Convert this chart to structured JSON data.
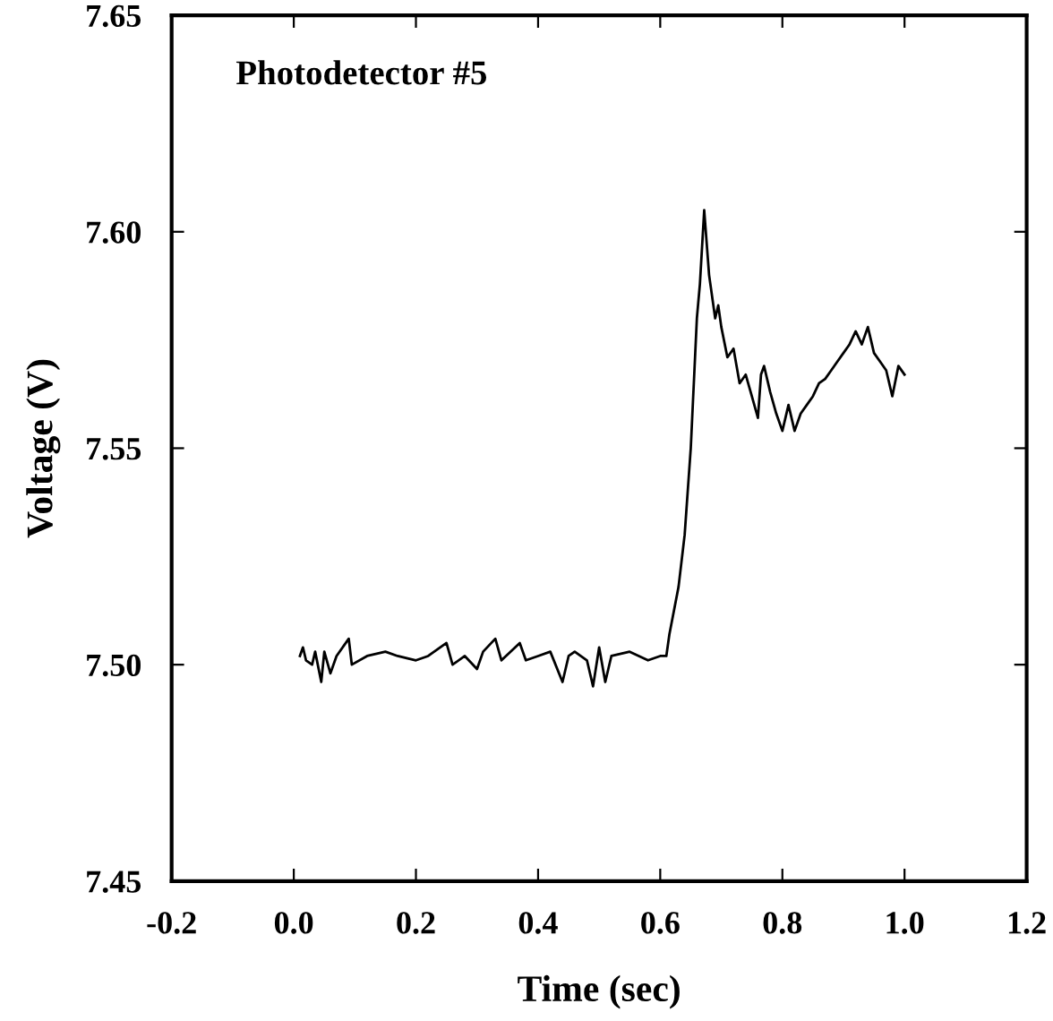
{
  "chart_data": {
    "type": "line",
    "xlabel": "Time (sec)",
    "ylabel": "Voltage (V)",
    "annotations": [
      "Photodetector #5"
    ],
    "xlim": [
      -0.2,
      1.2
    ],
    "xticks": [
      {
        "value": -0.2,
        "label": "-0.2"
      },
      {
        "value": 0.0,
        "label": "0.0"
      },
      0.2,
      0.4,
      0.6,
      0.8,
      {
        "value": 1.0,
        "label": "1.0"
      },
      1.2
    ],
    "ylim": [
      7.45,
      7.65
    ],
    "yticks": [
      7.45,
      {
        "value": 7.5,
        "label": "7.50"
      },
      7.55,
      {
        "value": 7.6,
        "label": "7.60"
      },
      7.65
    ],
    "grid": false,
    "legend": false,
    "marker": "none",
    "line_style": "solid",
    "series": [
      {
        "color": "#000000",
        "x": [
          0.01,
          0.015,
          0.02,
          0.03,
          0.035,
          0.045,
          0.05,
          0.06,
          0.07,
          0.09,
          0.095,
          0.12,
          0.15,
          0.17,
          0.2,
          0.22,
          0.25,
          0.26,
          0.28,
          0.3,
          0.31,
          0.33,
          0.34,
          0.37,
          0.38,
          0.4,
          0.42,
          0.44,
          0.45,
          0.46,
          0.48,
          0.49,
          0.5,
          0.51,
          0.52,
          0.55,
          0.58,
          0.6,
          0.61,
          0.615,
          0.63,
          0.64,
          0.65,
          0.66,
          0.665,
          0.672,
          0.68,
          0.69,
          0.695,
          0.7,
          0.71,
          0.72,
          0.73,
          0.74,
          0.75,
          0.76,
          0.765,
          0.77,
          0.78,
          0.79,
          0.8,
          0.81,
          0.82,
          0.83,
          0.84,
          0.85,
          0.86,
          0.87,
          0.88,
          0.89,
          0.9,
          0.91,
          0.92,
          0.93,
          0.94,
          0.95,
          0.96,
          0.97,
          0.98,
          0.99,
          1.0
        ],
        "values": [
          7.502,
          7.504,
          7.501,
          7.5,
          7.503,
          7.496,
          7.503,
          7.498,
          7.502,
          7.506,
          7.5,
          7.502,
          7.503,
          7.502,
          7.501,
          7.502,
          7.505,
          7.5,
          7.502,
          7.499,
          7.503,
          7.506,
          7.501,
          7.505,
          7.501,
          7.502,
          7.503,
          7.496,
          7.502,
          7.503,
          7.501,
          7.495,
          7.504,
          7.496,
          7.502,
          7.503,
          7.501,
          7.502,
          7.502,
          7.507,
          7.518,
          7.53,
          7.55,
          7.58,
          7.588,
          7.605,
          7.59,
          7.58,
          7.583,
          7.578,
          7.571,
          7.573,
          7.565,
          7.567,
          7.562,
          7.557,
          7.567,
          7.569,
          7.563,
          7.558,
          7.554,
          7.56,
          7.554,
          7.558,
          7.56,
          7.562,
          7.565,
          7.566,
          7.568,
          7.57,
          7.572,
          7.574,
          7.577,
          7.574,
          7.578,
          7.572,
          7.57,
          7.568,
          7.562,
          7.569,
          7.567
        ]
      }
    ]
  }
}
